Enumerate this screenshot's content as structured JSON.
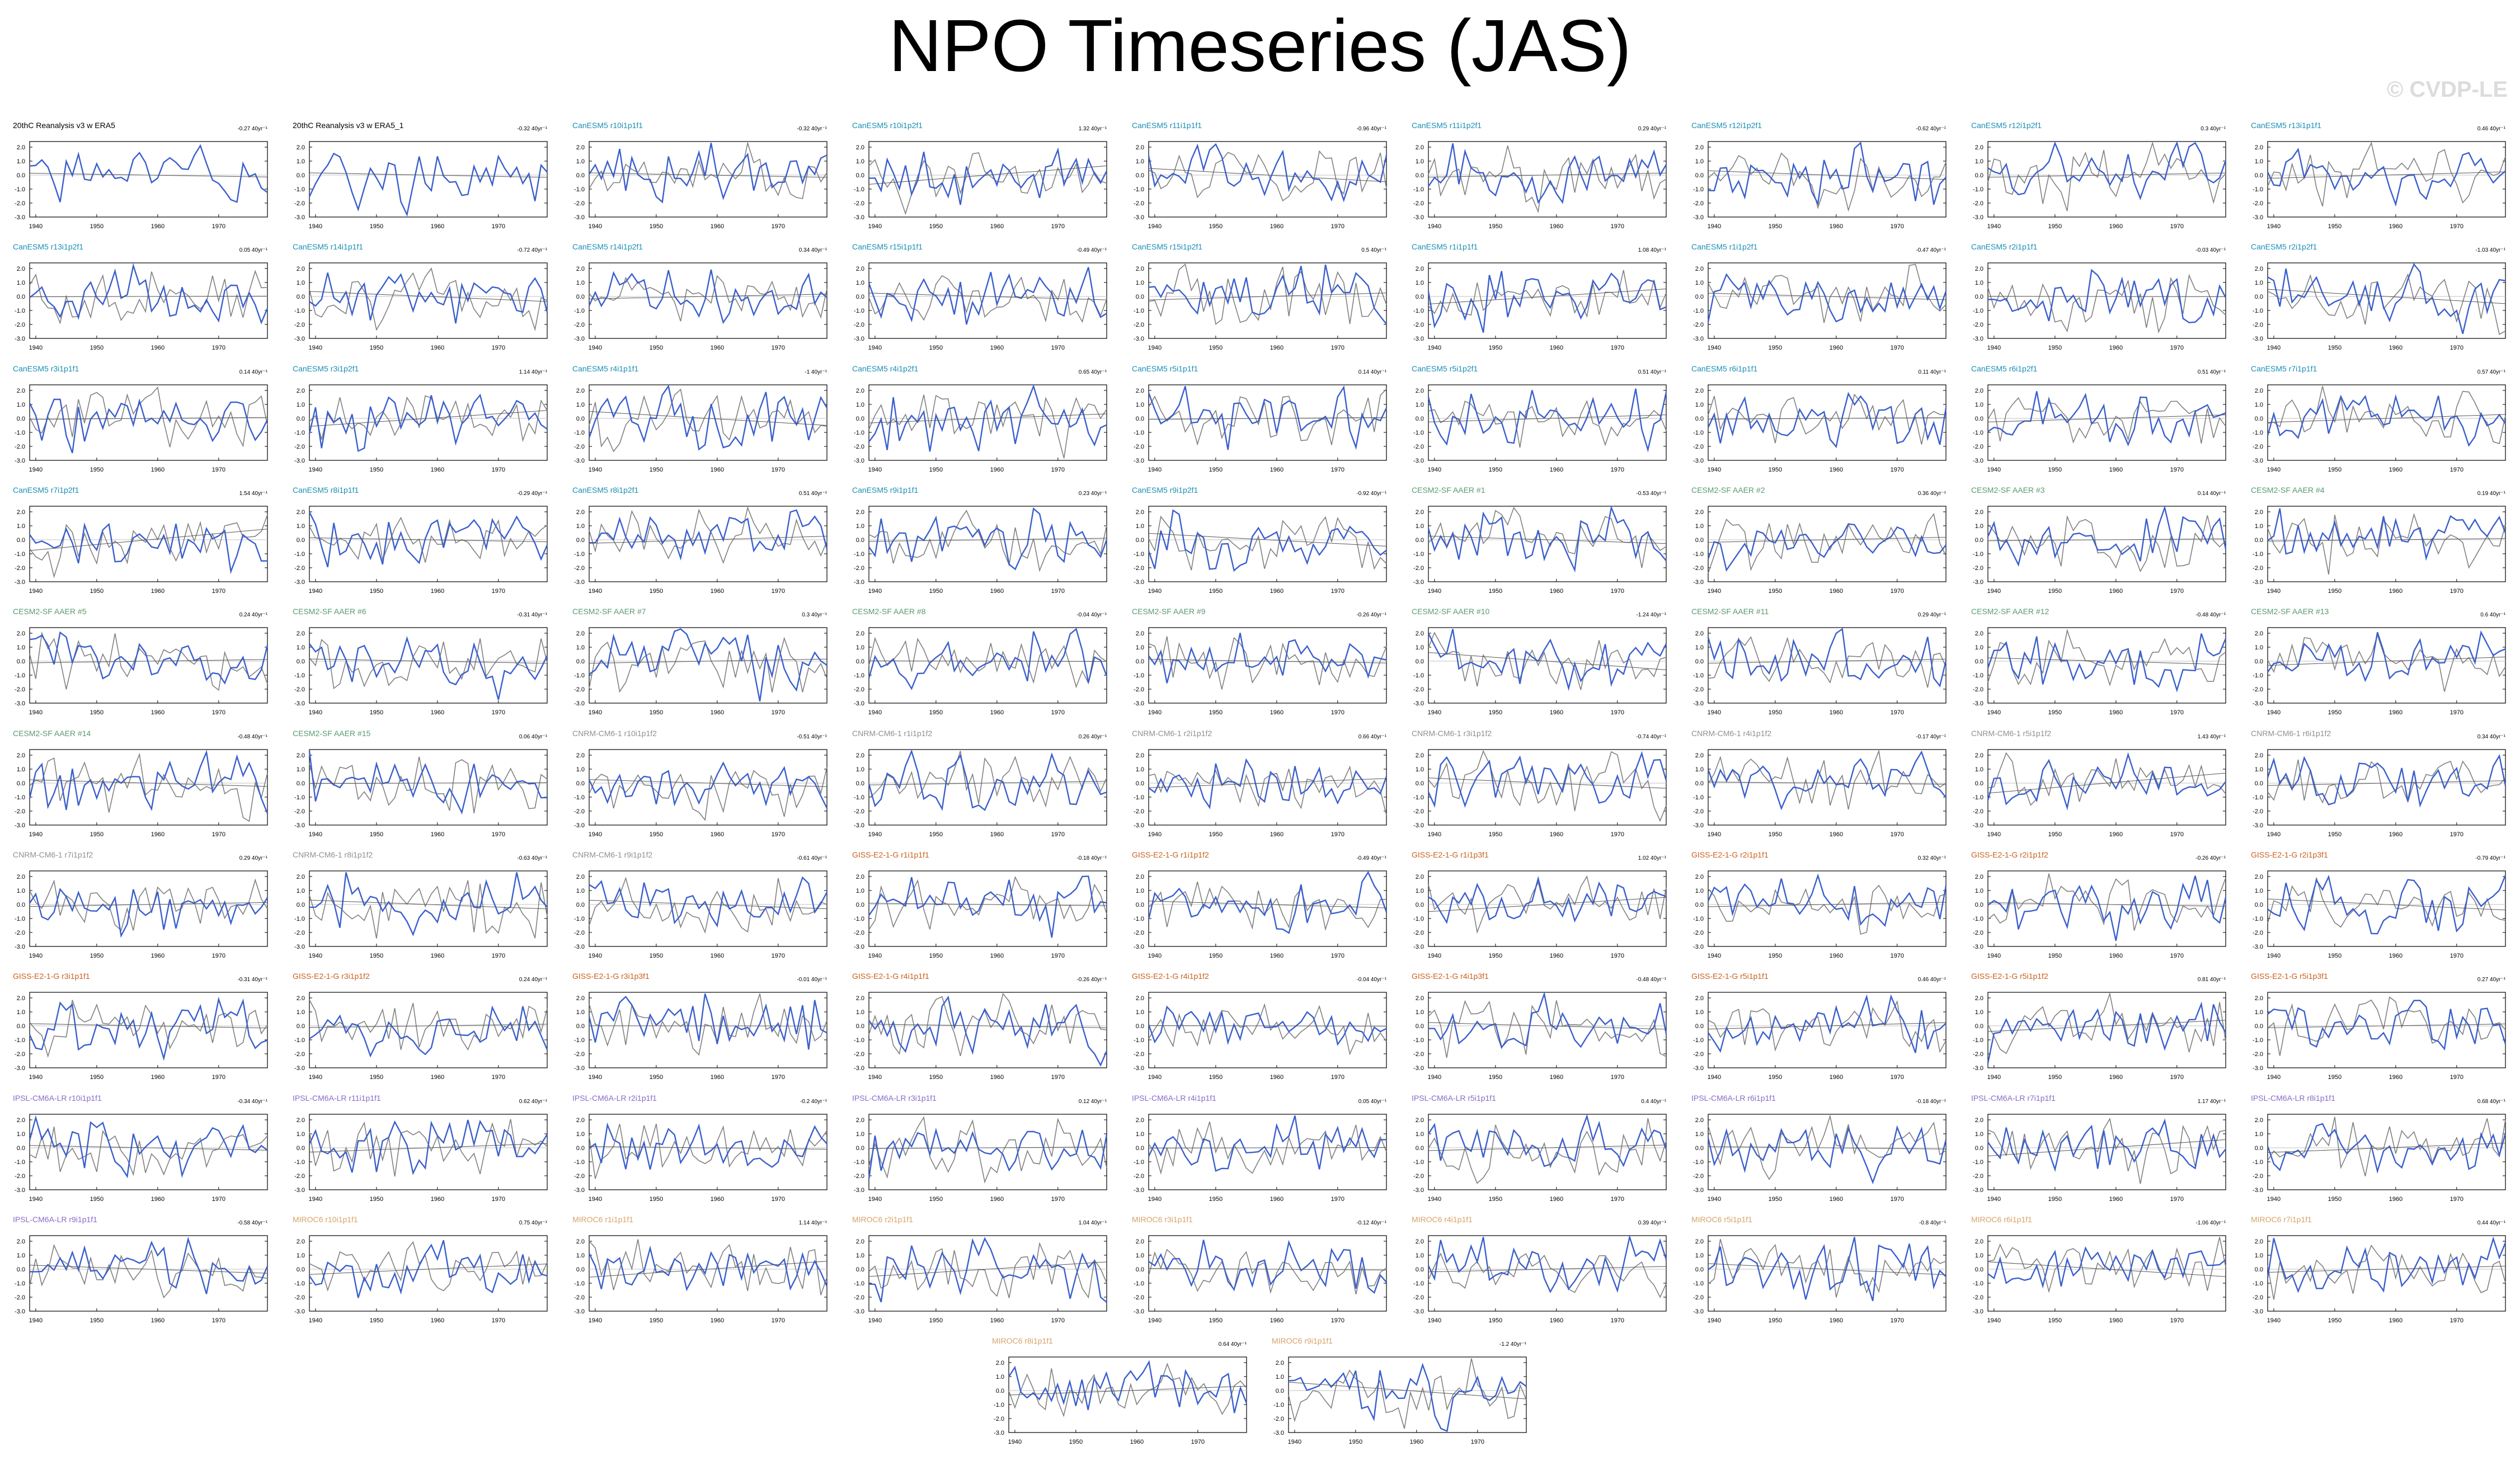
{
  "title": "NPO Timeseries (JAS)",
  "watermark": "© CVDP-LE",
  "colors": {
    "model_line": "#3a5fcd",
    "reference_line": "#808080",
    "CanESM5": "#1a8fb4",
    "CESM2": "#5a9a6e",
    "CNRM": "#909090",
    "GISS": "#c8601e",
    "IPSL": "#8a6ac8",
    "MIROC6": "#d8a26a",
    "obs": "#000000",
    "zero_line": "#c0c0c0"
  },
  "y_ticks": [
    "2.0",
    "1.0",
    "0.0",
    "-1.0",
    "-2.0",
    "-3.0"
  ],
  "x_ticks": [
    "1940",
    "1950",
    "1960",
    "1970"
  ],
  "chart_data": [
    {
      "type": "line",
      "title": "20thC Reanalysis v3 w ERA5",
      "trend": "-0.27 40yr⁻¹",
      "group": "obs",
      "seed": 1
    },
    {
      "type": "line",
      "title": "20thC Reanalysis v3 w ERA5_1",
      "trend": "-0.32 40yr⁻¹",
      "group": "obs",
      "seed": 2
    },
    {
      "type": "line",
      "title": "CanESM5 r10i1p1f1",
      "trend": "-0.32 40yr⁻¹",
      "group": "CanESM5",
      "seed": 3
    },
    {
      "type": "line",
      "title": "CanESM5 r10i1p2f1",
      "trend": "1.32 40yr⁻¹",
      "group": "CanESM5",
      "seed": 4
    },
    {
      "type": "line",
      "title": "CanESM5 r11i1p1f1",
      "trend": "-0.96 40yr⁻¹",
      "group": "CanESM5",
      "seed": 5
    },
    {
      "type": "line",
      "title": "CanESM5 r11i1p2f1",
      "trend": "0.29 40yr⁻¹",
      "group": "CanESM5",
      "seed": 6
    },
    {
      "type": "line",
      "title": "CanESM5 r12i1p2f1",
      "trend": "-0.62 40yr⁻¹",
      "group": "CanESM5",
      "seed": 7
    },
    {
      "type": "line",
      "title": "CanESM5 r12i1p2f1",
      "trend": "0.3 40yr⁻¹",
      "group": "CanESM5",
      "seed": 8
    },
    {
      "type": "line",
      "title": "CanESM5 r13i1p1f1",
      "trend": "0.46 40yr⁻¹",
      "group": "CanESM5",
      "seed": 9
    },
    {
      "type": "line",
      "title": "CanESM5 r13i1p2f1",
      "trend": "0.05 40yr⁻¹",
      "group": "CanESM5",
      "seed": 10
    },
    {
      "type": "line",
      "title": "CanESM5 r14i1p1f1",
      "trend": "-0.72 40yr⁻¹",
      "group": "CanESM5",
      "seed": 11
    },
    {
      "type": "line",
      "title": "CanESM5 r14i1p2f1",
      "trend": "0.34 40yr⁻¹",
      "group": "CanESM5",
      "seed": 12
    },
    {
      "type": "line",
      "title": "CanESM5 r15i1p1f1",
      "trend": "-0.49 40yr⁻¹",
      "group": "CanESM5",
      "seed": 13
    },
    {
      "type": "line",
      "title": "CanESM5 r15i1p2f1",
      "trend": "0.5 40yr⁻¹",
      "group": "CanESM5",
      "seed": 14
    },
    {
      "type": "line",
      "title": "CanESM5 r1i1p1f1",
      "trend": "1.08 40yr⁻¹",
      "group": "CanESM5",
      "seed": 15
    },
    {
      "type": "line",
      "title": "CanESM5 r1i1p2f1",
      "trend": "-0.47 40yr⁻¹",
      "group": "CanESM5",
      "seed": 16
    },
    {
      "type": "line",
      "title": "CanESM5 r2i1p1f1",
      "trend": "-0.03 40yr⁻¹",
      "group": "CanESM5",
      "seed": 17
    },
    {
      "type": "line",
      "title": "CanESM5 r2i1p2f1",
      "trend": "-1.03 40yr⁻¹",
      "group": "CanESM5",
      "seed": 18
    },
    {
      "type": "line",
      "title": "CanESM5 r3i1p1f1",
      "trend": "0.14 40yr⁻¹",
      "group": "CanESM5",
      "seed": 19
    },
    {
      "type": "line",
      "title": "CanESM5 r3i1p2f1",
      "trend": "1.14 40yr⁻¹",
      "group": "CanESM5",
      "seed": 20
    },
    {
      "type": "line",
      "title": "CanESM5 r4i1p1f1",
      "trend": "-1 40yr⁻¹",
      "group": "CanESM5",
      "seed": 21
    },
    {
      "type": "line",
      "title": "CanESM5 r4i1p2f1",
      "trend": "0.65 40yr⁻¹",
      "group": "CanESM5",
      "seed": 22
    },
    {
      "type": "line",
      "title": "CanESM5 r5i1p1f1",
      "trend": "0.14 40yr⁻¹",
      "group": "CanESM5",
      "seed": 23
    },
    {
      "type": "line",
      "title": "CanESM5 r5i1p2f1",
      "trend": "0.51 40yr⁻¹",
      "group": "CanESM5",
      "seed": 24
    },
    {
      "type": "line",
      "title": "CanESM5 r6i1p1f1",
      "trend": "0.11 40yr⁻¹",
      "group": "CanESM5",
      "seed": 25
    },
    {
      "type": "line",
      "title": "CanESM5 r6i1p2f1",
      "trend": "0.51 40yr⁻¹",
      "group": "CanESM5",
      "seed": 26
    },
    {
      "type": "line",
      "title": "CanESM5 r7i1p1f1",
      "trend": "0.57 40yr⁻¹",
      "group": "CanESM5",
      "seed": 27
    },
    {
      "type": "line",
      "title": "CanESM5 r7i1p2f1",
      "trend": "1.54 40yr⁻¹",
      "group": "CanESM5",
      "seed": 28
    },
    {
      "type": "line",
      "title": "CanESM5 r8i1p1f1",
      "trend": "-0.29 40yr⁻¹",
      "group": "CanESM5",
      "seed": 29
    },
    {
      "type": "line",
      "title": "CanESM5 r8i1p2f1",
      "trend": "0.51 40yr⁻¹",
      "group": "CanESM5",
      "seed": 30
    },
    {
      "type": "line",
      "title": "CanESM5 r9i1p1f1",
      "trend": "0.23 40yr⁻¹",
      "group": "CanESM5",
      "seed": 31
    },
    {
      "type": "line",
      "title": "CanESM5 r9i1p2f1",
      "trend": "-0.92 40yr⁻¹",
      "group": "CanESM5",
      "seed": 32
    },
    {
      "type": "line",
      "title": "CESM2-SF AAER #1",
      "trend": "-0.53 40yr⁻¹",
      "group": "CESM2",
      "seed": 33
    },
    {
      "type": "line",
      "title": "CESM2-SF AAER #2",
      "trend": "0.36 40yr⁻¹",
      "group": "CESM2",
      "seed": 34
    },
    {
      "type": "line",
      "title": "CESM2-SF AAER #3",
      "trend": "0.14 40yr⁻¹",
      "group": "CESM2",
      "seed": 35
    },
    {
      "type": "line",
      "title": "CESM2-SF AAER #4",
      "trend": "0.19 40yr⁻¹",
      "group": "CESM2",
      "seed": 36
    },
    {
      "type": "line",
      "title": "CESM2-SF AAER #5",
      "trend": "0.24 40yr⁻¹",
      "group": "CESM2",
      "seed": 37
    },
    {
      "type": "line",
      "title": "CESM2-SF AAER #6",
      "trend": "-0.31 40yr⁻¹",
      "group": "CESM2",
      "seed": 38
    },
    {
      "type": "line",
      "title": "CESM2-SF AAER #7",
      "trend": "0.3 40yr⁻¹",
      "group": "CESM2",
      "seed": 39
    },
    {
      "type": "line",
      "title": "CESM2-SF AAER #8",
      "trend": "-0.04 40yr⁻¹",
      "group": "CESM2",
      "seed": 40
    },
    {
      "type": "line",
      "title": "CESM2-SF AAER #9",
      "trend": "-0.26 40yr⁻¹",
      "group": "CESM2",
      "seed": 41
    },
    {
      "type": "line",
      "title": "CESM2-SF AAER #10",
      "trend": "-1.24 40yr⁻¹",
      "group": "CESM2",
      "seed": 42
    },
    {
      "type": "line",
      "title": "CESM2-SF AAER #11",
      "trend": "0.29 40yr⁻¹",
      "group": "CESM2",
      "seed": 43
    },
    {
      "type": "line",
      "title": "CESM2-SF AAER #12",
      "trend": "-0.48 40yr⁻¹",
      "group": "CESM2",
      "seed": 44
    },
    {
      "type": "line",
      "title": "CESM2-SF AAER #13",
      "trend": "0.6 40yr⁻¹",
      "group": "CESM2",
      "seed": 45
    },
    {
      "type": "line",
      "title": "CESM2-SF AAER #14",
      "trend": "-0.48 40yr⁻¹",
      "group": "CESM2",
      "seed": 46
    },
    {
      "type": "line",
      "title": "CESM2-SF AAER #15",
      "trend": "0.06 40yr⁻¹",
      "group": "CESM2",
      "seed": 47
    },
    {
      "type": "line",
      "title": "CNRM-CM6-1 r10i1p1f2",
      "trend": "-0.51 40yr⁻¹",
      "group": "CNRM",
      "seed": 48
    },
    {
      "type": "line",
      "title": "CNRM-CM6-1 r1i1p1f2",
      "trend": "0.26 40yr⁻¹",
      "group": "CNRM",
      "seed": 49
    },
    {
      "type": "line",
      "title": "CNRM-CM6-1 r2i1p1f2",
      "trend": "0.66 40yr⁻¹",
      "group": "CNRM",
      "seed": 50
    },
    {
      "type": "line",
      "title": "CNRM-CM6-1 r3i1p1f2",
      "trend": "-0.74 40yr⁻¹",
      "group": "CNRM",
      "seed": 51
    },
    {
      "type": "line",
      "title": "CNRM-CM6-1 r4i1p1f2",
      "trend": "-0.17 40yr⁻¹",
      "group": "CNRM",
      "seed": 52
    },
    {
      "type": "line",
      "title": "CNRM-CM6-1 r5i1p1f2",
      "trend": "1.43 40yr⁻¹",
      "group": "CNRM",
      "seed": 53
    },
    {
      "type": "line",
      "title": "CNRM-CM6-1 r6i1p1f2",
      "trend": "0.34 40yr⁻¹",
      "group": "CNRM",
      "seed": 54
    },
    {
      "type": "line",
      "title": "CNRM-CM6-1 r7i1p1f2",
      "trend": "0.29 40yr⁻¹",
      "group": "CNRM",
      "seed": 55
    },
    {
      "type": "line",
      "title": "CNRM-CM6-1 r8i1p1f2",
      "trend": "-0.63 40yr⁻¹",
      "group": "CNRM",
      "seed": 56
    },
    {
      "type": "line",
      "title": "CNRM-CM6-1 r9i1p1f2",
      "trend": "-0.61 40yr⁻¹",
      "group": "CNRM",
      "seed": 57
    },
    {
      "type": "line",
      "title": "GISS-E2-1-G r1i1p1f1",
      "trend": "-0.18 40yr⁻¹",
      "group": "GISS",
      "seed": 58
    },
    {
      "type": "line",
      "title": "GISS-E2-1-G r1i1p1f2",
      "trend": "-0.49 40yr⁻¹",
      "group": "GISS",
      "seed": 59
    },
    {
      "type": "line",
      "title": "GISS-E2-1-G r1i1p3f1",
      "trend": "1.02 40yr⁻¹",
      "group": "GISS",
      "seed": 60
    },
    {
      "type": "line",
      "title": "GISS-E2-1-G r2i1p1f1",
      "trend": "0.32 40yr⁻¹",
      "group": "GISS",
      "seed": 61
    },
    {
      "type": "line",
      "title": "GISS-E2-1-G r2i1p1f2",
      "trend": "-0.26 40yr⁻¹",
      "group": "GISS",
      "seed": 62
    },
    {
      "type": "line",
      "title": "GISS-E2-1-G r2i1p3f1",
      "trend": "-0.79 40yr⁻¹",
      "group": "GISS",
      "seed": 63
    },
    {
      "type": "line",
      "title": "GISS-E2-1-G r3i1p1f1",
      "trend": "-0.31 40yr⁻¹",
      "group": "GISS",
      "seed": 64
    },
    {
      "type": "line",
      "title": "GISS-E2-1-G r3i1p1f2",
      "trend": "0.24 40yr⁻¹",
      "group": "GISS",
      "seed": 65
    },
    {
      "type": "line",
      "title": "GISS-E2-1-G r3i1p3f1",
      "trend": "-0.01 40yr⁻¹",
      "group": "GISS",
      "seed": 66
    },
    {
      "type": "line",
      "title": "GISS-E2-1-G r4i1p1f1",
      "trend": "-0.26 40yr⁻¹",
      "group": "GISS",
      "seed": 67
    },
    {
      "type": "line",
      "title": "GISS-E2-1-G r4i1p1f2",
      "trend": "-0.04 40yr⁻¹",
      "group": "GISS",
      "seed": 68
    },
    {
      "type": "line",
      "title": "GISS-E2-1-G r4i1p3f1",
      "trend": "-0.48 40yr⁻¹",
      "group": "GISS",
      "seed": 69
    },
    {
      "type": "line",
      "title": "GISS-E2-1-G r5i1p1f1",
      "trend": "0.46 40yr⁻¹",
      "group": "GISS",
      "seed": 70
    },
    {
      "type": "line",
      "title": "GISS-E2-1-G r5i1p1f2",
      "trend": "0.81 40yr⁻¹",
      "group": "GISS",
      "seed": 71
    },
    {
      "type": "line",
      "title": "GISS-E2-1-G r5i1p3f1",
      "trend": "0.27 40yr⁻¹",
      "group": "GISS",
      "seed": 72
    },
    {
      "type": "line",
      "title": "IPSL-CM6A-LR r10i1p1f1",
      "trend": "-0.34 40yr⁻¹",
      "group": "IPSL",
      "seed": 73
    },
    {
      "type": "line",
      "title": "IPSL-CM6A-LR r11i1p1f1",
      "trend": "0.62 40yr⁻¹",
      "group": "IPSL",
      "seed": 74
    },
    {
      "type": "line",
      "title": "IPSL-CM6A-LR r2i1p1f1",
      "trend": "-0.2 40yr⁻¹",
      "group": "IPSL",
      "seed": 75
    },
    {
      "type": "line",
      "title": "IPSL-CM6A-LR r3i1p1f1",
      "trend": "0.12 40yr⁻¹",
      "group": "IPSL",
      "seed": 76
    },
    {
      "type": "line",
      "title": "IPSL-CM6A-LR r4i1p1f1",
      "trend": "0.05 40yr⁻¹",
      "group": "IPSL",
      "seed": 77
    },
    {
      "type": "line",
      "title": "IPSL-CM6A-LR r5i1p1f1",
      "trend": "0.4 40yr⁻¹",
      "group": "IPSL",
      "seed": 78
    },
    {
      "type": "line",
      "title": "IPSL-CM6A-LR r6i1p1f1",
      "trend": "-0.18 40yr⁻¹",
      "group": "IPSL",
      "seed": 79
    },
    {
      "type": "line",
      "title": "IPSL-CM6A-LR r7i1p1f1",
      "trend": "1.17 40yr⁻¹",
      "group": "IPSL",
      "seed": 80
    },
    {
      "type": "line",
      "title": "IPSL-CM6A-LR r8i1p1f1",
      "trend": "0.68 40yr⁻¹",
      "group": "IPSL",
      "seed": 81
    },
    {
      "type": "line",
      "title": "IPSL-CM6A-LR r9i1p1f1",
      "trend": "-0.58 40yr⁻¹",
      "group": "IPSL",
      "seed": 82
    },
    {
      "type": "line",
      "title": "MIROC6 r10i1p1f1",
      "trend": "0.75 40yr⁻¹",
      "group": "MIROC6",
      "seed": 83
    },
    {
      "type": "line",
      "title": "MIROC6 r1i1p1f1",
      "trend": "1.14 40yr⁻¹",
      "group": "MIROC6",
      "seed": 84
    },
    {
      "type": "line",
      "title": "MIROC6 r2i1p1f1",
      "trend": "1.04 40yr⁻¹",
      "group": "MIROC6",
      "seed": 85
    },
    {
      "type": "line",
      "title": "MIROC6 r3i1p1f1",
      "trend": "-0.12 40yr⁻¹",
      "group": "MIROC6",
      "seed": 86
    },
    {
      "type": "line",
      "title": "MIROC6 r4i1p1f1",
      "trend": "0.39 40yr⁻¹",
      "group": "MIROC6",
      "seed": 87
    },
    {
      "type": "line",
      "title": "MIROC6 r5i1p1f1",
      "trend": "-0.8 40yr⁻¹",
      "group": "MIROC6",
      "seed": 88
    },
    {
      "type": "line",
      "title": "MIROC6 r6i1p1f1",
      "trend": "-1.06 40yr⁻¹",
      "group": "MIROC6",
      "seed": 89
    },
    {
      "type": "line",
      "title": "MIROC6 r7i1p1f1",
      "trend": "0.44 40yr⁻¹",
      "group": "MIROC6",
      "seed": 90
    },
    {
      "type": "line",
      "title": "MIROC6 r8i1p1f1",
      "trend": "0.64 40yr⁻¹",
      "group": "MIROC6",
      "seed": 91
    },
    {
      "type": "line",
      "title": "MIROC6 r9i1p1f1",
      "trend": "-1.2 40yr⁻¹",
      "group": "MIROC6",
      "seed": 92
    }
  ]
}
